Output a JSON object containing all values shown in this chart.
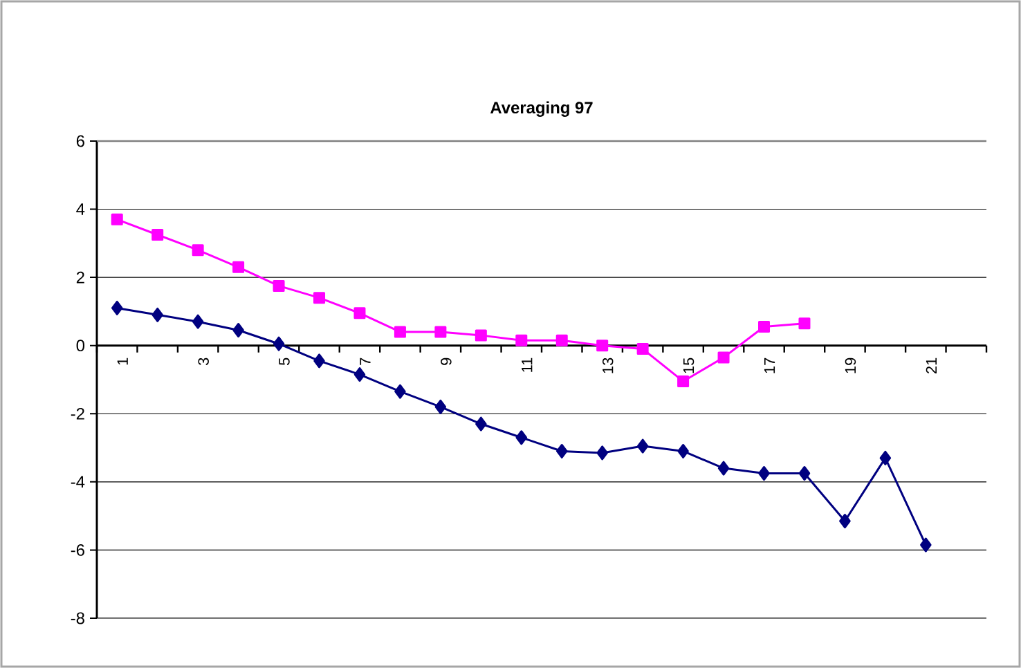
{
  "chart_data": {
    "type": "line",
    "title": "Averaging 97",
    "categories": [
      "1",
      null,
      "3",
      null,
      "5",
      null,
      "7",
      null,
      "9",
      null,
      "11",
      null,
      "13",
      null,
      "15",
      null,
      "17",
      null,
      "19",
      null,
      "21",
      null
    ],
    "series": [
      {
        "color": "#000080",
        "marker": "diamond",
        "values": [
          1.1,
          0.9,
          0.7,
          0.45,
          0.05,
          -0.45,
          -0.85,
          -1.35,
          -1.8,
          -2.3,
          -2.7,
          -3.1,
          -3.15,
          -2.95,
          -3.1,
          -3.6,
          -3.75,
          -3.75,
          -5.15,
          -3.3,
          -5.85,
          null
        ]
      },
      {
        "color": "#ff00ff",
        "marker": "square",
        "values": [
          3.7,
          3.25,
          2.8,
          2.3,
          1.75,
          1.4,
          0.95,
          0.4,
          0.4,
          0.3,
          0.15,
          0.15,
          0.0,
          -0.1,
          -1.05,
          -0.35,
          0.55,
          0.65,
          null,
          null,
          null,
          null
        ]
      }
    ],
    "ylim": [
      -8,
      6
    ],
    "yticks": [
      -8,
      -6,
      -4,
      -2,
      0,
      2,
      4,
      6
    ],
    "grid": "y",
    "line_style": "solid"
  }
}
